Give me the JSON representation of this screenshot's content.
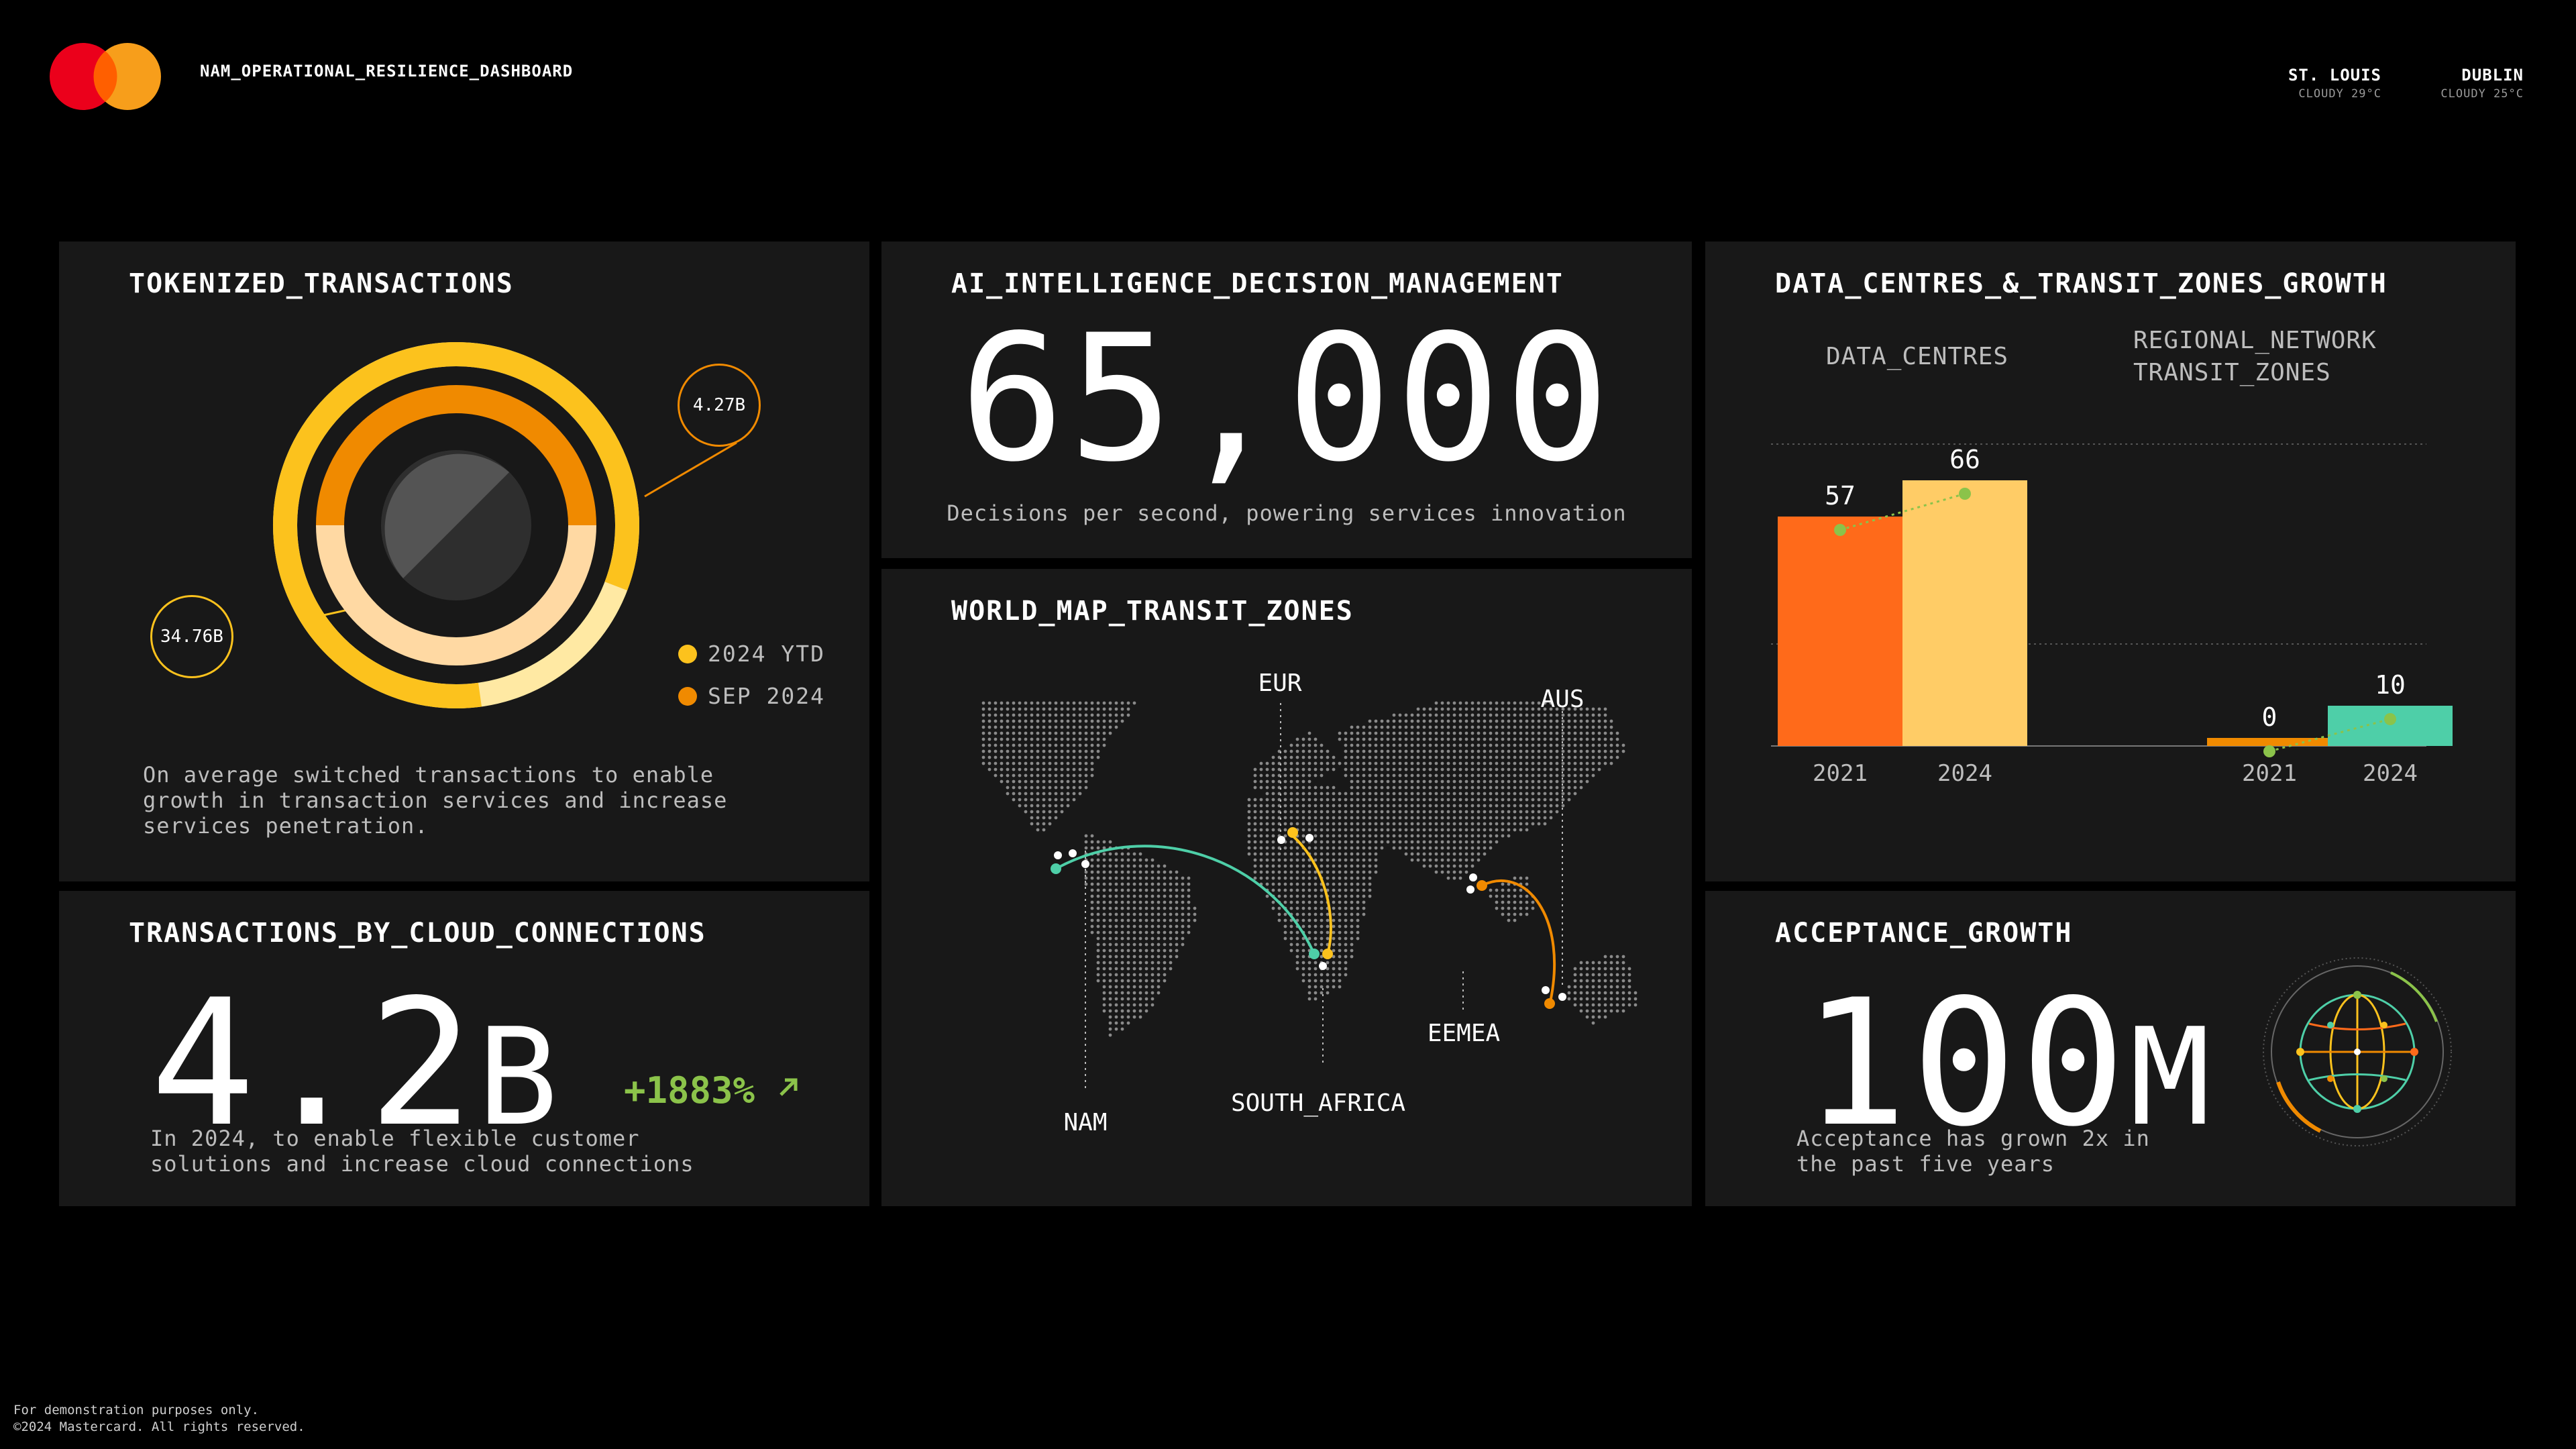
{
  "header": {
    "title": "NAM_OPERATIONAL_RESILIENCE_DASHBOARD",
    "weather": [
      {
        "city": "ST. LOUIS",
        "condition": "CLOUDY 29°C"
      },
      {
        "city": "DUBLIN",
        "condition": "CLOUDY 25°C"
      }
    ]
  },
  "colors": {
    "background": "#000000",
    "panel": "#181818",
    "brand_red": "#eb001b",
    "brand_orange": "#f79e1b",
    "yellow": "#fcc21d",
    "orange": "#f08a00",
    "cream": "#ffd9a3",
    "red_orange": "#ff6a1a",
    "light_yellow": "#ffcc66",
    "teal": "#4ecfa8",
    "green": "#8bc34a"
  },
  "tokenized": {
    "title": "TOKENIZED_TRANSACTIONS",
    "bubble_outer": "4.27B",
    "bubble_inner": "34.76B",
    "legend": [
      {
        "label": "2024 YTD",
        "color": "#fcc21d"
      },
      {
        "label": "SEP 2024",
        "color": "#f08a00"
      }
    ],
    "description": "On average switched transactions to enable growth in transaction services and increase services penetration."
  },
  "cloud": {
    "title": "TRANSACTIONS_BY_CLOUD_CONNECTIONS",
    "value": "4.2",
    "unit": "B",
    "change": "+1883%",
    "change_icon": "arrow-up-right-icon",
    "description": "In 2024, to enable flexible customer solutions and increase cloud connections"
  },
  "ai": {
    "title": "AI_INTELLIGENCE_DECISION_MANAGEMENT",
    "value": "65,000",
    "description": "Decisions per second, powering services innovation"
  },
  "map": {
    "title": "WORLD_MAP_TRANSIT_ZONES",
    "regions": [
      "EUR",
      "AUS",
      "EEMEA",
      "SOUTH_AFRICA",
      "NAM"
    ]
  },
  "growth": {
    "title": "DATA_CENTRES_&_TRANSIT_ZONES_GROWTH",
    "group1_label": "DATA_CENTRES",
    "group2_label_line1": "REGIONAL_NETWORK",
    "group2_label_line2": "TRANSIT_ZONES"
  },
  "acceptance": {
    "title": "ACCEPTANCE_GROWTH",
    "value": "100",
    "unit": "M",
    "description": "Acceptance has grown 2x in the past five years",
    "icon": "globe-icon"
  },
  "footer": {
    "line1": "For demonstration purposes only.",
    "line2": "©2024 Mastercard. All rights reserved."
  },
  "chart_data": [
    {
      "type": "donut",
      "series": [
        {
          "name": "2024 YTD",
          "value": "34.76B",
          "color": "#fcc21d"
        },
        {
          "name": "SEP 2024",
          "value": "4.27B",
          "color": "#f08a00"
        }
      ]
    },
    {
      "type": "bar",
      "groups": [
        {
          "name": "DATA_CENTRES",
          "categories": [
            "2021",
            "2024"
          ],
          "values": [
            57,
            66
          ],
          "colors": [
            "#ff6a1a",
            "#ffcc66"
          ]
        },
        {
          "name": "REGIONAL_NETWORK TRANSIT_ZONES",
          "categories": [
            "2021",
            "2024"
          ],
          "values": [
            0,
            10
          ],
          "colors": [
            "#f08a00",
            "#4ecfa8"
          ]
        }
      ],
      "grid": true
    }
  ]
}
